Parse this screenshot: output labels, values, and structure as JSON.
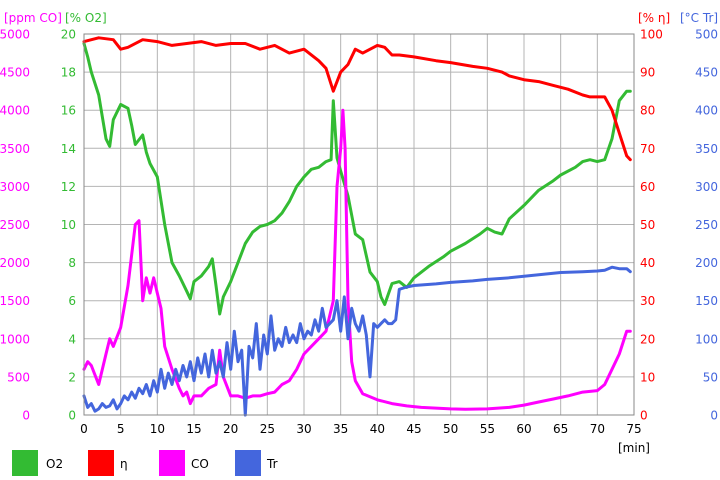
{
  "chart_data": {
    "type": "line",
    "x_unit": "[min]",
    "x_ticks": [
      0,
      5,
      10,
      15,
      20,
      25,
      30,
      35,
      40,
      45,
      50,
      55,
      60,
      65,
      70,
      75
    ],
    "xlim": [
      0,
      75
    ],
    "grid": true,
    "legend_position": "bottom",
    "axes": [
      {
        "id": "co",
        "label": "[ppm CO]",
        "side": "left",
        "color": "#ff00ff",
        "min": 0,
        "max": 5000,
        "ticks": [
          0,
          500,
          1000,
          1500,
          2000,
          2500,
          3000,
          3500,
          4000,
          4500,
          5000
        ]
      },
      {
        "id": "o2",
        "label": "[% O2]",
        "side": "left",
        "color": "#33bb33",
        "min": 0,
        "max": 20,
        "ticks": [
          0,
          2,
          4,
          6,
          8,
          10,
          12,
          14,
          16,
          18,
          20
        ]
      },
      {
        "id": "eta",
        "label": "[% η]",
        "side": "right",
        "color": "#ff0000",
        "min": 0,
        "max": 100,
        "ticks": [
          0,
          10,
          20,
          30,
          40,
          50,
          60,
          70,
          80,
          90,
          100
        ]
      },
      {
        "id": "tr",
        "label": "[°C Tr]",
        "side": "right",
        "color": "#4466dd",
        "min": 0,
        "max": 500,
        "ticks": [
          0,
          50,
          100,
          150,
          200,
          250,
          300,
          350,
          400,
          450,
          500
        ]
      }
    ],
    "series": [
      {
        "name": "O2",
        "axis": "o2",
        "color": "#33bb33",
        "points": [
          [
            0,
            19.5
          ],
          [
            0.5,
            18.8
          ],
          [
            1,
            18
          ],
          [
            2,
            16.8
          ],
          [
            3,
            14.5
          ],
          [
            3.5,
            14.1
          ],
          [
            4,
            15.5
          ],
          [
            5,
            16.3
          ],
          [
            6,
            16.1
          ],
          [
            6.5,
            15.2
          ],
          [
            7,
            14.2
          ],
          [
            8,
            14.7
          ],
          [
            8.5,
            13.8
          ],
          [
            9,
            13.2
          ],
          [
            10,
            12.5
          ],
          [
            11,
            10
          ],
          [
            12,
            8
          ],
          [
            13,
            7.3
          ],
          [
            14,
            6.5
          ],
          [
            14.5,
            6.1
          ],
          [
            15,
            7
          ],
          [
            16,
            7.3
          ],
          [
            17,
            7.8
          ],
          [
            17.5,
            8.2
          ],
          [
            18,
            6.8
          ],
          [
            18.5,
            5.3
          ],
          [
            19,
            6.2
          ],
          [
            20,
            7
          ],
          [
            21,
            8
          ],
          [
            22,
            9
          ],
          [
            23,
            9.6
          ],
          [
            24,
            9.9
          ],
          [
            25,
            10
          ],
          [
            26,
            10.2
          ],
          [
            27,
            10.6
          ],
          [
            28,
            11.2
          ],
          [
            29,
            12
          ],
          [
            30,
            12.5
          ],
          [
            31,
            12.9
          ],
          [
            32,
            13
          ],
          [
            33,
            13.3
          ],
          [
            33.7,
            13.4
          ],
          [
            34,
            16.5
          ],
          [
            34.5,
            13.5
          ],
          [
            35,
            12.8
          ],
          [
            36,
            11.5
          ],
          [
            37,
            9.5
          ],
          [
            38,
            9.2
          ],
          [
            39,
            7.5
          ],
          [
            40,
            7
          ],
          [
            40.5,
            6.2
          ],
          [
            41,
            5.8
          ],
          [
            42,
            6.9
          ],
          [
            43,
            7
          ],
          [
            44,
            6.7
          ],
          [
            45,
            7.2
          ],
          [
            47,
            7.8
          ],
          [
            49,
            8.3
          ],
          [
            50,
            8.6
          ],
          [
            52,
            9
          ],
          [
            54,
            9.5
          ],
          [
            55,
            9.8
          ],
          [
            56,
            9.6
          ],
          [
            57,
            9.5
          ],
          [
            58,
            10.3
          ],
          [
            60,
            11
          ],
          [
            62,
            11.8
          ],
          [
            64,
            12.3
          ],
          [
            65,
            12.6
          ],
          [
            67,
            13
          ],
          [
            68,
            13.3
          ],
          [
            69,
            13.4
          ],
          [
            70,
            13.3
          ],
          [
            71,
            13.4
          ],
          [
            72,
            14.5
          ],
          [
            73,
            16.5
          ],
          [
            74,
            17
          ],
          [
            74.5,
            17
          ]
        ]
      },
      {
        "name": "η",
        "axis": "eta",
        "color": "#ff0000",
        "points": [
          [
            0,
            98
          ],
          [
            2,
            99
          ],
          [
            4,
            98.5
          ],
          [
            5,
            96
          ],
          [
            6,
            96.5
          ],
          [
            8,
            98.5
          ],
          [
            10,
            98
          ],
          [
            12,
            97
          ],
          [
            14,
            97.5
          ],
          [
            16,
            98
          ],
          [
            18,
            97
          ],
          [
            20,
            97.5
          ],
          [
            22,
            97.5
          ],
          [
            24,
            96
          ],
          [
            26,
            97
          ],
          [
            28,
            95
          ],
          [
            30,
            96
          ],
          [
            32,
            93
          ],
          [
            33,
            91
          ],
          [
            34,
            85
          ],
          [
            35,
            90
          ],
          [
            36,
            92
          ],
          [
            37,
            96
          ],
          [
            38,
            95
          ],
          [
            40,
            97
          ],
          [
            41,
            96.5
          ],
          [
            42,
            94.5
          ],
          [
            43,
            94.5
          ],
          [
            45,
            94
          ],
          [
            48,
            93
          ],
          [
            50,
            92.5
          ],
          [
            53,
            91.5
          ],
          [
            55,
            91
          ],
          [
            57,
            90
          ],
          [
            58,
            89
          ],
          [
            60,
            88
          ],
          [
            62,
            87.5
          ],
          [
            64,
            86.5
          ],
          [
            66,
            85.5
          ],
          [
            68,
            84
          ],
          [
            69,
            83.5
          ],
          [
            70,
            83.5
          ],
          [
            71,
            83.5
          ],
          [
            72,
            80
          ],
          [
            73,
            74
          ],
          [
            74,
            68
          ],
          [
            74.5,
            67
          ]
        ]
      },
      {
        "name": "CO",
        "axis": "co",
        "color": "#ff00ff",
        "points": [
          [
            0,
            600
          ],
          [
            0.5,
            700
          ],
          [
            1,
            650
          ],
          [
            2,
            400
          ],
          [
            3,
            800
          ],
          [
            3.5,
            1000
          ],
          [
            4,
            900
          ],
          [
            5,
            1150
          ],
          [
            6,
            1700
          ],
          [
            7,
            2500
          ],
          [
            7.5,
            2550
          ],
          [
            8,
            1500
          ],
          [
            8.5,
            1800
          ],
          [
            9,
            1600
          ],
          [
            9.5,
            1800
          ],
          [
            10,
            1600
          ],
          [
            10.5,
            1400
          ],
          [
            11,
            900
          ],
          [
            12,
            600
          ],
          [
            13,
            350
          ],
          [
            13.5,
            250
          ],
          [
            14,
            300
          ],
          [
            14.5,
            150
          ],
          [
            15,
            250
          ],
          [
            16,
            250
          ],
          [
            17,
            350
          ],
          [
            18,
            400
          ],
          [
            18.5,
            850
          ],
          [
            19,
            500
          ],
          [
            20,
            250
          ],
          [
            21,
            250
          ],
          [
            22,
            220
          ],
          [
            23,
            250
          ],
          [
            24,
            250
          ],
          [
            25,
            280
          ],
          [
            26,
            300
          ],
          [
            27,
            400
          ],
          [
            28,
            450
          ],
          [
            29,
            600
          ],
          [
            30,
            800
          ],
          [
            31,
            900
          ],
          [
            32,
            1000
          ],
          [
            33,
            1100
          ],
          [
            34,
            1500
          ],
          [
            34.5,
            3000
          ],
          [
            35,
            3500
          ],
          [
            35.3,
            4000
          ],
          [
            35.6,
            3500
          ],
          [
            36,
            1500
          ],
          [
            36.5,
            700
          ],
          [
            37,
            450
          ],
          [
            38,
            280
          ],
          [
            40,
            200
          ],
          [
            42,
            150
          ],
          [
            44,
            120
          ],
          [
            46,
            100
          ],
          [
            48,
            90
          ],
          [
            50,
            80
          ],
          [
            52,
            75
          ],
          [
            55,
            80
          ],
          [
            58,
            100
          ],
          [
            60,
            130
          ],
          [
            62,
            170
          ],
          [
            64,
            210
          ],
          [
            66,
            250
          ],
          [
            68,
            300
          ],
          [
            70,
            320
          ],
          [
            71,
            400
          ],
          [
            72,
            600
          ],
          [
            73,
            800
          ],
          [
            74,
            1100
          ],
          [
            74.5,
            1100
          ]
        ]
      },
      {
        "name": "Tr",
        "axis": "tr",
        "color": "#4466dd",
        "points": [
          [
            0,
            25
          ],
          [
            0.5,
            10
          ],
          [
            1,
            15
          ],
          [
            1.5,
            5
          ],
          [
            2,
            8
          ],
          [
            2.5,
            15
          ],
          [
            3,
            10
          ],
          [
            3.5,
            12
          ],
          [
            4,
            20
          ],
          [
            4.5,
            8
          ],
          [
            5,
            15
          ],
          [
            5.5,
            25
          ],
          [
            6,
            20
          ],
          [
            6.5,
            30
          ],
          [
            7,
            22
          ],
          [
            7.5,
            35
          ],
          [
            8,
            28
          ],
          [
            8.5,
            40
          ],
          [
            9,
            25
          ],
          [
            9.5,
            45
          ],
          [
            10,
            30
          ],
          [
            10.5,
            60
          ],
          [
            11,
            35
          ],
          [
            11.5,
            55
          ],
          [
            12,
            40
          ],
          [
            12.5,
            60
          ],
          [
            13,
            45
          ],
          [
            13.5,
            65
          ],
          [
            14,
            50
          ],
          [
            14.5,
            70
          ],
          [
            15,
            45
          ],
          [
            15.5,
            75
          ],
          [
            16,
            55
          ],
          [
            16.5,
            80
          ],
          [
            17,
            50
          ],
          [
            17.5,
            85
          ],
          [
            18,
            55
          ],
          [
            18.5,
            70
          ],
          [
            19,
            50
          ],
          [
            19.5,
            95
          ],
          [
            20,
            60
          ],
          [
            20.5,
            110
          ],
          [
            21,
            70
          ],
          [
            21.5,
            85
          ],
          [
            22,
            0
          ],
          [
            22.5,
            90
          ],
          [
            23,
            75
          ],
          [
            23.5,
            120
          ],
          [
            24,
            60
          ],
          [
            24.5,
            105
          ],
          [
            25,
            80
          ],
          [
            25.5,
            130
          ],
          [
            26,
            85
          ],
          [
            26.5,
            100
          ],
          [
            27,
            90
          ],
          [
            27.5,
            115
          ],
          [
            28,
            95
          ],
          [
            28.5,
            105
          ],
          [
            29,
            95
          ],
          [
            29.5,
            120
          ],
          [
            30,
            100
          ],
          [
            30.5,
            110
          ],
          [
            31,
            105
          ],
          [
            31.5,
            125
          ],
          [
            32,
            110
          ],
          [
            32.5,
            140
          ],
          [
            33,
            115
          ],
          [
            33.5,
            120
          ],
          [
            34,
            125
          ],
          [
            34.5,
            150
          ],
          [
            35,
            110
          ],
          [
            35.5,
            155
          ],
          [
            36,
            100
          ],
          [
            36.5,
            140
          ],
          [
            37,
            120
          ],
          [
            37.5,
            110
          ],
          [
            38,
            130
          ],
          [
            38.5,
            105
          ],
          [
            39,
            50
          ],
          [
            39.5,
            120
          ],
          [
            40,
            115
          ],
          [
            40.5,
            120
          ],
          [
            41,
            125
          ],
          [
            41.5,
            120
          ],
          [
            42,
            120
          ],
          [
            42.5,
            125
          ],
          [
            43,
            165
          ],
          [
            44,
            168
          ],
          [
            45,
            170
          ],
          [
            48,
            172
          ],
          [
            50,
            174
          ],
          [
            53,
            176
          ],
          [
            55,
            178
          ],
          [
            58,
            180
          ],
          [
            60,
            182
          ],
          [
            62,
            184
          ],
          [
            65,
            187
          ],
          [
            68,
            188
          ],
          [
            70,
            189
          ],
          [
            71,
            190
          ],
          [
            72,
            194
          ],
          [
            73,
            192
          ],
          [
            74,
            192
          ],
          [
            74.5,
            188
          ]
        ]
      }
    ]
  },
  "legend": [
    {
      "label": "O2",
      "color": "#33bb33"
    },
    {
      "label": "η",
      "color": "#ff0000"
    },
    {
      "label": "CO",
      "color": "#ff00ff"
    },
    {
      "label": "Tr",
      "color": "#4466dd"
    }
  ]
}
